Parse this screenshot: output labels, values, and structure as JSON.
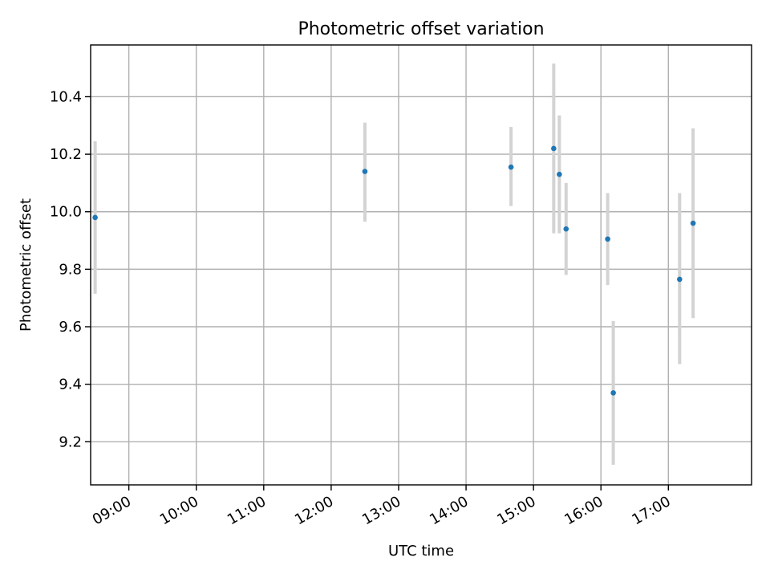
{
  "chart_data": {
    "type": "scatter",
    "title": "Photometric offset variation",
    "xlabel": "UTC time",
    "ylabel": "Photometric offset",
    "x_axis_kind": "time",
    "xlim": [
      "08:26",
      "18:14"
    ],
    "ylim": [
      9.05,
      10.58
    ],
    "x_ticks": [
      "09:00",
      "10:00",
      "11:00",
      "12:00",
      "13:00",
      "14:00",
      "15:00",
      "16:00",
      "17:00"
    ],
    "y_ticks": [
      "9.2",
      "9.4",
      "9.6",
      "9.8",
      "10.0",
      "10.2",
      "10.4"
    ],
    "grid": true,
    "colors": {
      "point": "#1f77b4",
      "errorbar": "#d3d3d3"
    },
    "points": [
      {
        "x": "08:30",
        "y": 9.98,
        "yerr_low": 9.715,
        "yerr_high": 10.245
      },
      {
        "x": "12:30",
        "y": 10.14,
        "yerr_low": 9.965,
        "yerr_high": 10.31
      },
      {
        "x": "14:40",
        "y": 10.155,
        "yerr_low": 10.02,
        "yerr_high": 10.295
      },
      {
        "x": "15:18",
        "y": 10.22,
        "yerr_low": 9.925,
        "yerr_high": 10.515
      },
      {
        "x": "15:23",
        "y": 10.13,
        "yerr_low": 9.925,
        "yerr_high": 10.335
      },
      {
        "x": "15:29",
        "y": 9.94,
        "yerr_low": 9.78,
        "yerr_high": 10.1
      },
      {
        "x": "16:06",
        "y": 9.905,
        "yerr_low": 9.745,
        "yerr_high": 10.065
      },
      {
        "x": "16:11",
        "y": 9.37,
        "yerr_low": 9.12,
        "yerr_high": 9.62
      },
      {
        "x": "17:10",
        "y": 9.765,
        "yerr_low": 9.47,
        "yerr_high": 10.065
      },
      {
        "x": "17:22",
        "y": 9.96,
        "yerr_low": 9.63,
        "yerr_high": 10.29
      }
    ]
  }
}
